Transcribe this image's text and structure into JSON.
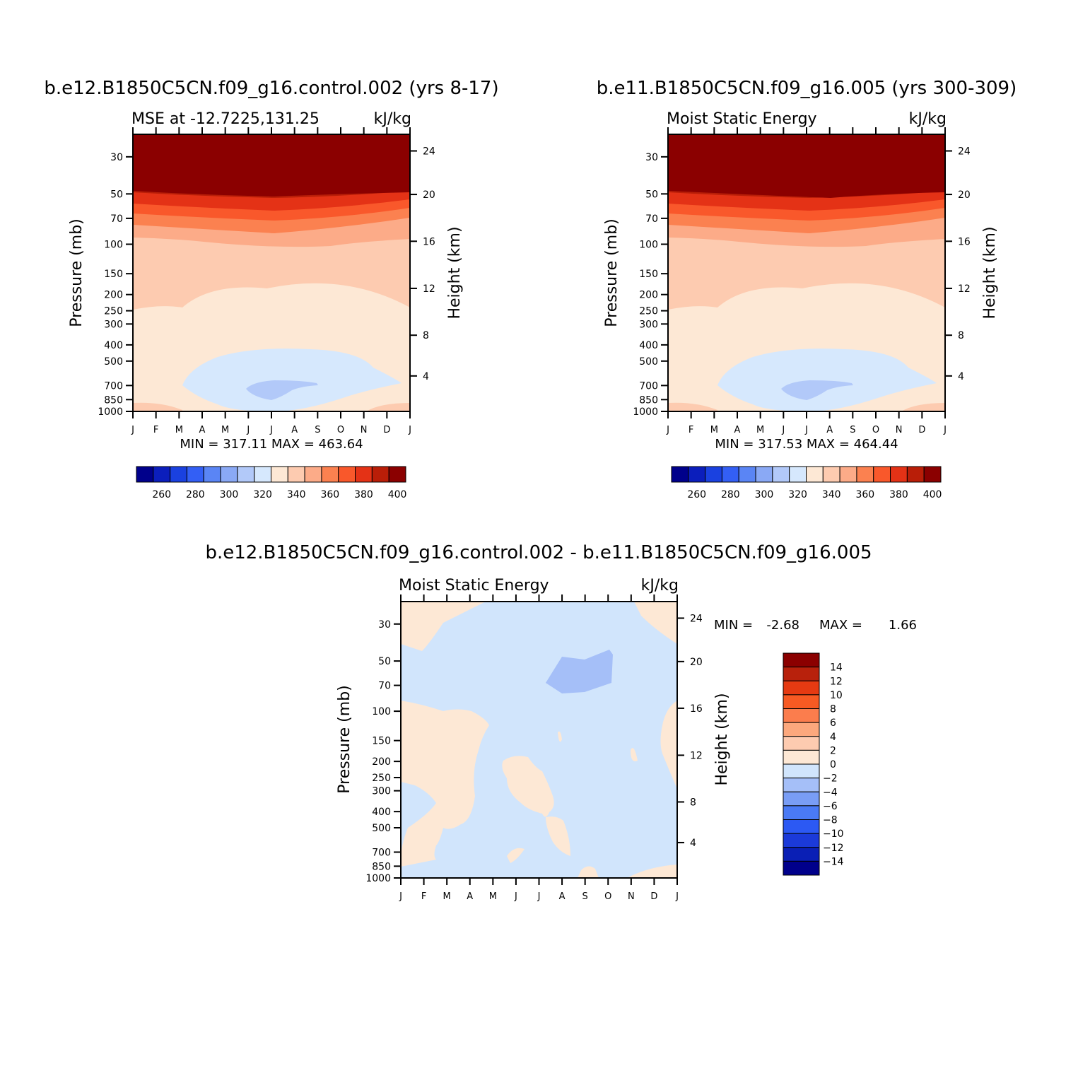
{
  "colors": {
    "abs_scale": [
      "#00008b",
      "#0b1ebc",
      "#1a41e0",
      "#335ff5",
      "#5a85f5",
      "#8aa9f5",
      "#b2c9f9",
      "#d6e8fd",
      "#fde8d5",
      "#fdcbb0",
      "#fcab88",
      "#fb8150",
      "#f9582b",
      "#e43216",
      "#b91e08",
      "#8b0000"
    ],
    "diff_scale": [
      "#00008b",
      "#0a1fb5",
      "#1b3ad9",
      "#2c59f3",
      "#4a7af5",
      "#799df5",
      "#a5bff8",
      "#d1e5fc",
      "#fde8d5",
      "#fdcbb0",
      "#fca87d",
      "#fb7d4d",
      "#f75a23",
      "#e53a12",
      "#b8210c",
      "#8b0000"
    ]
  },
  "chart_data": [
    {
      "type": "heatmap",
      "title": "b.e12.B1850C5CN.f09_g16.control.002 (yrs 8-17)",
      "left_string": "MSE at -12.7225,131.25",
      "right_string": "kJ/kg",
      "ylabel": "Pressure (mb)",
      "ylabel_right": "Height (km)",
      "y_ticks": [
        "30",
        "50",
        "70",
        "100",
        "150",
        "200",
        "250",
        "300",
        "400",
        "500",
        "700",
        "850",
        "1000"
      ],
      "y_right_ticks": [
        "24",
        "20",
        "16",
        "12",
        "8",
        "4"
      ],
      "x_ticks": [
        "J",
        "F",
        "M",
        "A",
        "M",
        "J",
        "J",
        "A",
        "S",
        "O",
        "N",
        "D",
        "J"
      ],
      "stats": "MIN = 317.11 MAX = 463.64",
      "colorbar_labels": [
        "260",
        "280",
        "300",
        "320",
        "340",
        "360",
        "380",
        "400"
      ]
    },
    {
      "type": "heatmap",
      "title": "b.e11.B1850C5CN.f09_g16.005 (yrs 300-309)",
      "left_string": "Moist Static Energy",
      "right_string": "kJ/kg",
      "ylabel": "Pressure (mb)",
      "ylabel_right": "Height (km)",
      "y_ticks": [
        "30",
        "50",
        "70",
        "100",
        "150",
        "200",
        "250",
        "300",
        "400",
        "500",
        "700",
        "850",
        "1000"
      ],
      "y_right_ticks": [
        "24",
        "20",
        "16",
        "12",
        "8",
        "4"
      ],
      "x_ticks": [
        "J",
        "F",
        "M",
        "A",
        "M",
        "J",
        "J",
        "A",
        "S",
        "O",
        "N",
        "D",
        "J"
      ],
      "stats": "MIN = 317.53 MAX = 464.44",
      "colorbar_labels": [
        "260",
        "280",
        "300",
        "320",
        "340",
        "360",
        "380",
        "400"
      ]
    },
    {
      "type": "heatmap",
      "title": "b.e12.B1850C5CN.f09_g16.control.002 - b.e11.B1850C5CN.f09_g16.005",
      "left_string": "Moist Static Energy",
      "right_string": "kJ/kg",
      "ylabel": "Pressure (mb)",
      "ylabel_right": "Height (km)",
      "y_ticks": [
        "30",
        "50",
        "70",
        "100",
        "150",
        "200",
        "250",
        "300",
        "400",
        "500",
        "700",
        "850",
        "1000"
      ],
      "y_right_ticks": [
        "24",
        "20",
        "16",
        "12",
        "8",
        "4"
      ],
      "x_ticks": [
        "J",
        "F",
        "M",
        "A",
        "M",
        "J",
        "J",
        "A",
        "S",
        "O",
        "N",
        "D",
        "J"
      ],
      "stats_min_label": "MIN =",
      "stats_min": "-2.68",
      "stats_max_label": "MAX =",
      "stats_max": "1.66",
      "colorbar_labels": [
        "14",
        "12",
        "10",
        "8",
        "6",
        "4",
        "2",
        "0",
        "-2",
        "-4",
        "-6",
        "-8",
        "-10",
        "-12",
        "-14"
      ]
    }
  ]
}
